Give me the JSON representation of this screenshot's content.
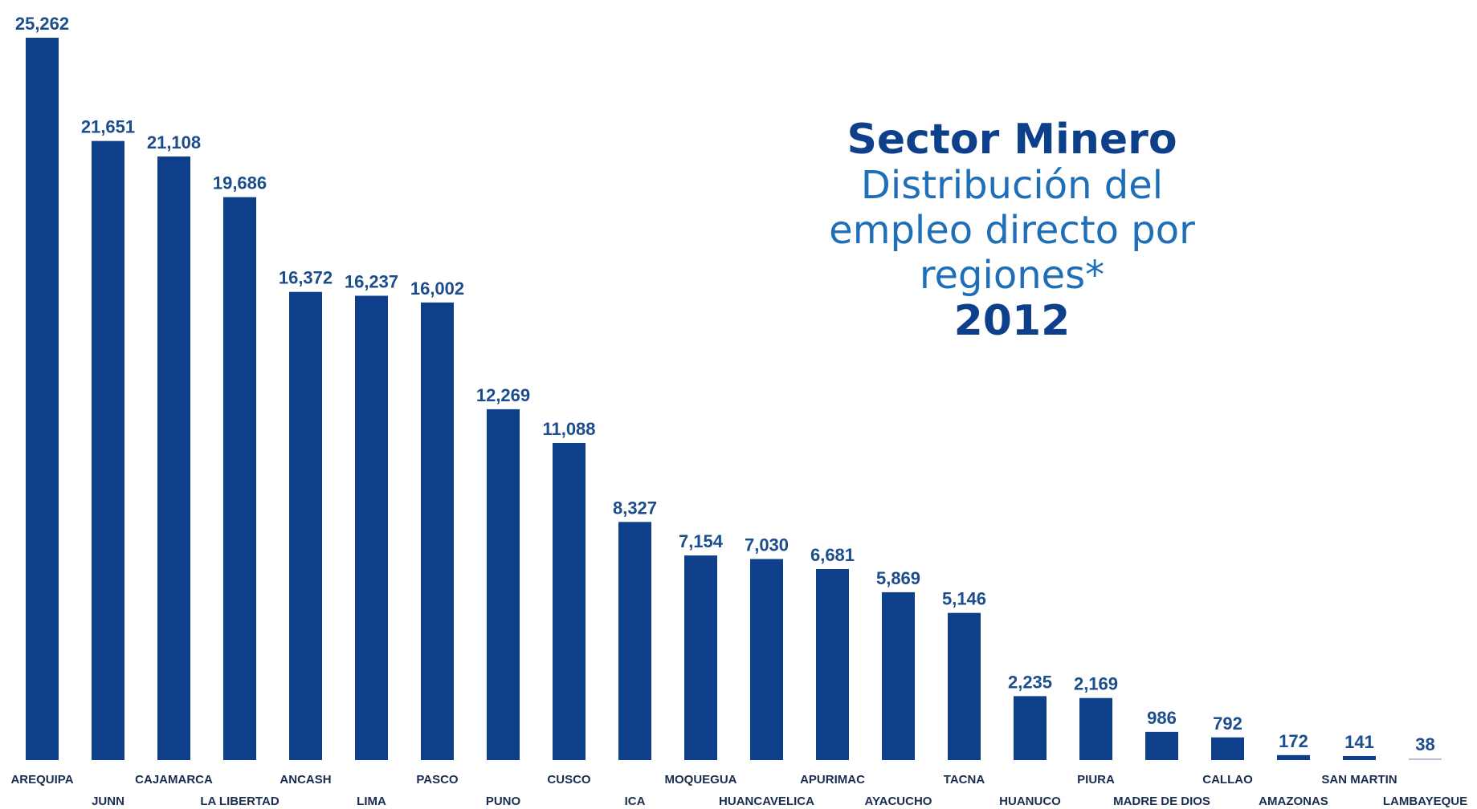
{
  "chart_data": {
    "type": "bar",
    "title": "Sector Minero",
    "subtitle": "Distribución del empleo directo por regiones*",
    "year": "2012",
    "categories": [
      "AREQUIPA",
      "JUNN",
      "CAJAMARCA",
      "LA LIBERTAD",
      "ANCASH",
      "LIMA",
      "PASCO",
      "PUNO",
      "CUSCO",
      "ICA",
      "MOQUEGUA",
      "HUANCAVELICA",
      "APURIMAC",
      "AYACUCHO",
      "TACNA",
      "HUANUCO",
      "PIURA",
      "MADRE DE DIOS",
      "CALLAO",
      "AMAZONAS",
      "SAN MARTIN",
      "LAMBAYEQUE"
    ],
    "values": [
      25262,
      21651,
      21108,
      19686,
      16372,
      16237,
      16002,
      12269,
      11088,
      8327,
      7154,
      7030,
      6681,
      5869,
      5146,
      2235,
      2169,
      986,
      792,
      172,
      141,
      38
    ],
    "value_labels": [
      "25,262",
      "21,651",
      "21,108",
      "19,686",
      "16,372",
      "16,237",
      "16,002",
      "12,269",
      "11,088",
      "8,327",
      "7,154",
      "7,030",
      "6,681",
      "5,869",
      "5,146",
      "2,235",
      "2,169",
      "986",
      "792",
      "172",
      "141",
      "38"
    ],
    "ylim": [
      0,
      25262
    ],
    "grid": false,
    "bar_color": "#0d3f8a",
    "last_bar_color": "#b8c2d3"
  }
}
